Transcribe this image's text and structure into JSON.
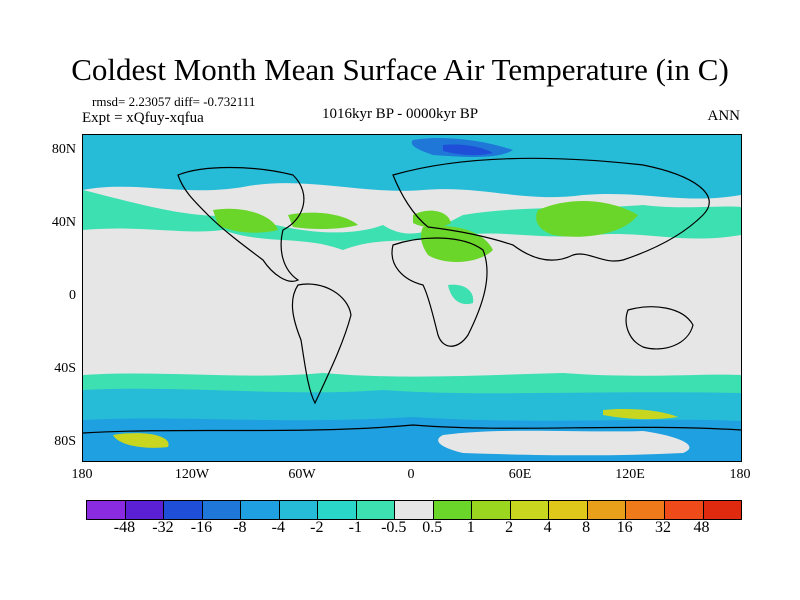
{
  "title": "Coldest Month Mean Surface Air Temperature (in C)",
  "stats": "rmsd= 2.23057 diff= -0.732111",
  "experiment": "Expt = xQfuy-xqfua",
  "period": "1016kyr BP - 0000kyr BP",
  "season": "ANN",
  "lat_ticks": [
    "80N",
    "40N",
    "0",
    "40S",
    "80S"
  ],
  "lon_ticks": [
    "180",
    "120W",
    "60W",
    "0",
    "60E",
    "120E",
    "180"
  ],
  "colorbar": {
    "colors": [
      "#8a2be2",
      "#5b1fd4",
      "#1f4fd8",
      "#1f78d8",
      "#1fa0e0",
      "#26bcd8",
      "#2ad6c8",
      "#3de0b0",
      "#e6e6e6",
      "#6ad62a",
      "#9ad61f",
      "#c8d61f",
      "#e0c81a",
      "#e8a01a",
      "#ee7a1a",
      "#ee4a1a",
      "#e02a10"
    ],
    "labels": [
      "-48",
      "-32",
      "-16",
      "-8",
      "-4",
      "-2",
      "-1",
      "-0.5",
      "0.5",
      "1",
      "2",
      "4",
      "8",
      "16",
      "32",
      "48"
    ]
  }
}
